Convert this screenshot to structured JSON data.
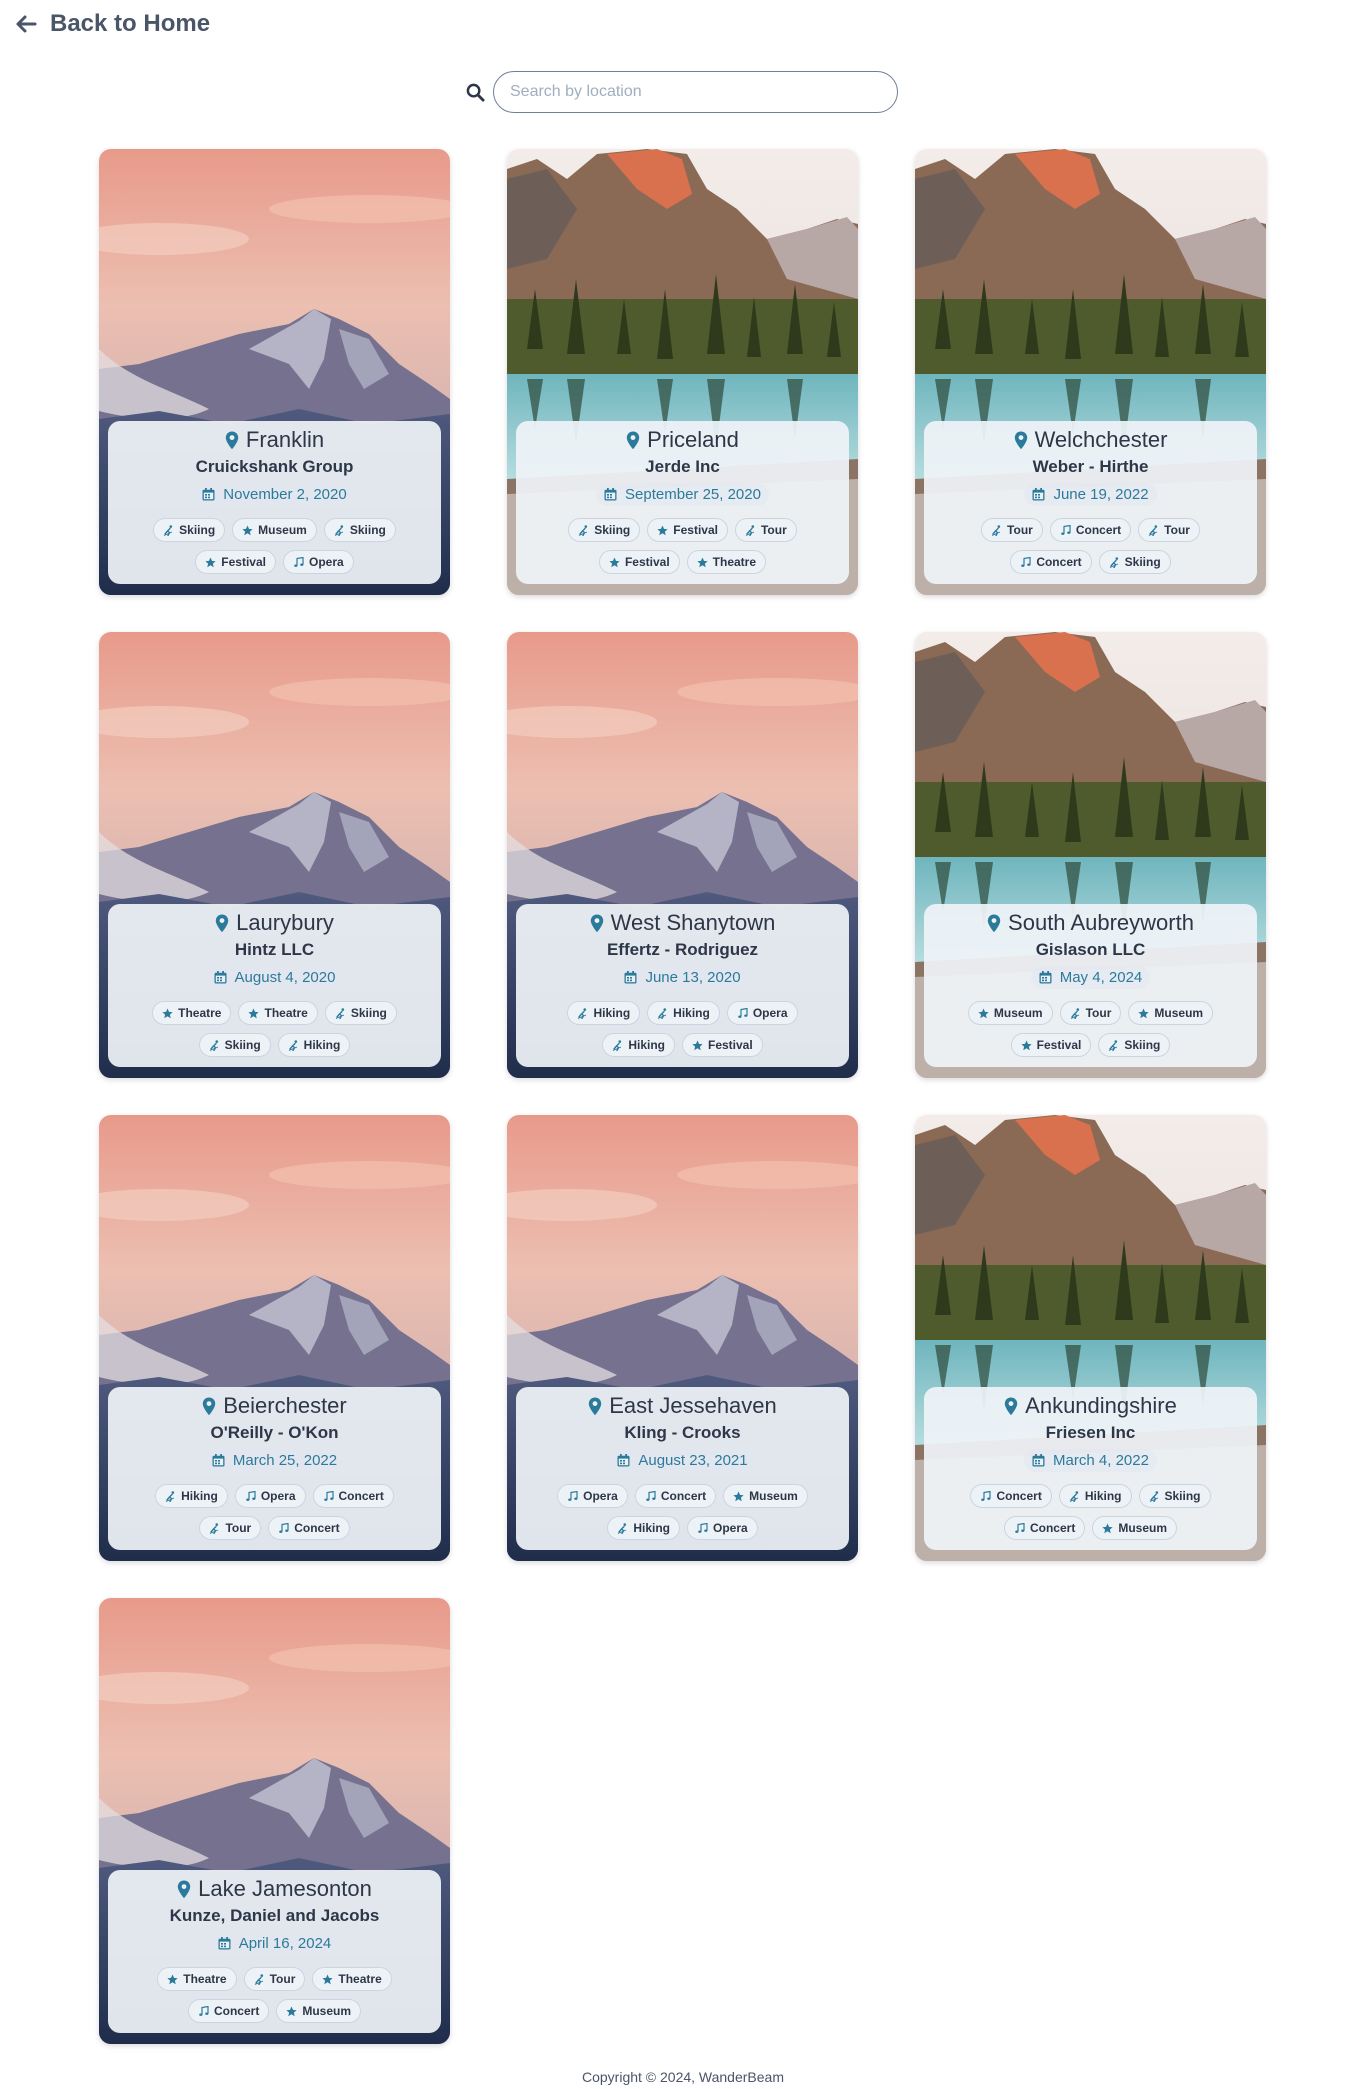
{
  "header": {
    "back_label": "Back to Home"
  },
  "search": {
    "placeholder": "Search by location",
    "value": ""
  },
  "colors": {
    "accent": "#2c7a9b",
    "text": "#2d3748"
  },
  "cards": [
    {
      "location": "Franklin",
      "company": "Cruickshank Group",
      "date": "November 2, 2020",
      "image": "mountain",
      "tags": [
        {
          "label": "Skiing",
          "icon": "skier-icon"
        },
        {
          "label": "Museum",
          "icon": "star-icon"
        },
        {
          "label": "Skiing",
          "icon": "skier-icon"
        },
        {
          "label": "Festival",
          "icon": "star-icon"
        },
        {
          "label": "Opera",
          "icon": "music-note-icon"
        }
      ]
    },
    {
      "location": "Priceland",
      "company": "Jerde Inc",
      "date": "September 25, 2020",
      "image": "lake",
      "tags": [
        {
          "label": "Skiing",
          "icon": "skier-icon"
        },
        {
          "label": "Festival",
          "icon": "star-icon"
        },
        {
          "label": "Tour",
          "icon": "skier-icon"
        },
        {
          "label": "Festival",
          "icon": "star-icon"
        },
        {
          "label": "Theatre",
          "icon": "star-icon"
        }
      ]
    },
    {
      "location": "Welchchester",
      "company": "Weber - Hirthe",
      "date": "June 19, 2022",
      "image": "lake",
      "tags": [
        {
          "label": "Tour",
          "icon": "skier-icon"
        },
        {
          "label": "Concert",
          "icon": "music-note-icon"
        },
        {
          "label": "Tour",
          "icon": "skier-icon"
        },
        {
          "label": "Concert",
          "icon": "music-note-icon"
        },
        {
          "label": "Skiing",
          "icon": "skier-icon"
        }
      ]
    },
    {
      "location": "Laurybury",
      "company": "Hintz LLC",
      "date": "August 4, 2020",
      "image": "mountain",
      "tags": [
        {
          "label": "Theatre",
          "icon": "star-icon"
        },
        {
          "label": "Theatre",
          "icon": "star-icon"
        },
        {
          "label": "Skiing",
          "icon": "skier-icon"
        },
        {
          "label": "Skiing",
          "icon": "skier-icon"
        },
        {
          "label": "Hiking",
          "icon": "skier-icon"
        }
      ]
    },
    {
      "location": "West Shanytown",
      "company": "Effertz - Rodriguez",
      "date": "June 13, 2020",
      "image": "mountain",
      "tags": [
        {
          "label": "Hiking",
          "icon": "skier-icon"
        },
        {
          "label": "Hiking",
          "icon": "skier-icon"
        },
        {
          "label": "Opera",
          "icon": "music-note-icon"
        },
        {
          "label": "Hiking",
          "icon": "skier-icon"
        },
        {
          "label": "Festival",
          "icon": "star-icon"
        }
      ]
    },
    {
      "location": "South Aubreyworth",
      "company": "Gislason LLC",
      "date": "May 4, 2024",
      "image": "lake",
      "tags": [
        {
          "label": "Museum",
          "icon": "star-icon"
        },
        {
          "label": "Tour",
          "icon": "skier-icon"
        },
        {
          "label": "Museum",
          "icon": "star-icon"
        },
        {
          "label": "Festival",
          "icon": "star-icon"
        },
        {
          "label": "Skiing",
          "icon": "skier-icon"
        }
      ]
    },
    {
      "location": "Beierchester",
      "company": "O'Reilly - O'Kon",
      "date": "March 25, 2022",
      "image": "mountain",
      "tags": [
        {
          "label": "Hiking",
          "icon": "skier-icon"
        },
        {
          "label": "Opera",
          "icon": "music-note-icon"
        },
        {
          "label": "Concert",
          "icon": "music-note-icon"
        },
        {
          "label": "Tour",
          "icon": "skier-icon"
        },
        {
          "label": "Concert",
          "icon": "music-note-icon"
        }
      ]
    },
    {
      "location": "East Jessehaven",
      "company": "Kling - Crooks",
      "date": "August 23, 2021",
      "image": "mountain",
      "tags": [
        {
          "label": "Opera",
          "icon": "music-note-icon"
        },
        {
          "label": "Concert",
          "icon": "music-note-icon"
        },
        {
          "label": "Museum",
          "icon": "star-icon"
        },
        {
          "label": "Hiking",
          "icon": "skier-icon"
        },
        {
          "label": "Opera",
          "icon": "music-note-icon"
        }
      ]
    },
    {
      "location": "Ankundingshire",
      "company": "Friesen Inc",
      "date": "March 4, 2022",
      "image": "lake",
      "tags": [
        {
          "label": "Concert",
          "icon": "music-note-icon"
        },
        {
          "label": "Hiking",
          "icon": "skier-icon"
        },
        {
          "label": "Skiing",
          "icon": "skier-icon"
        },
        {
          "label": "Concert",
          "icon": "music-note-icon"
        },
        {
          "label": "Museum",
          "icon": "star-icon"
        }
      ]
    },
    {
      "location": "Lake Jamesonton",
      "company": "Kunze, Daniel and Jacobs",
      "date": "April 16, 2024",
      "image": "mountain",
      "tags": [
        {
          "label": "Theatre",
          "icon": "star-icon"
        },
        {
          "label": "Tour",
          "icon": "skier-icon"
        },
        {
          "label": "Theatre",
          "icon": "star-icon"
        },
        {
          "label": "Concert",
          "icon": "music-note-icon"
        },
        {
          "label": "Museum",
          "icon": "star-icon"
        }
      ]
    }
  ],
  "footer": {
    "text": "Copyright © 2024, WanderBeam"
  }
}
